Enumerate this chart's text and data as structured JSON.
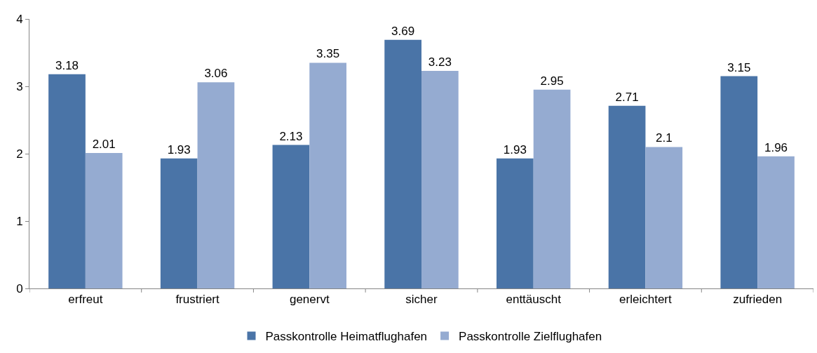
{
  "chart_data": {
    "type": "bar",
    "categories": [
      "erfreut",
      "frustriert",
      "genervt",
      "sicher",
      "enttäuscht",
      "erleichtert",
      "zufrieden"
    ],
    "series": [
      {
        "name": "Passkontrolle Heimatflughafen",
        "color": "#4a74a7",
        "values": [
          3.18,
          1.93,
          2.13,
          3.69,
          1.93,
          2.71,
          3.15
        ]
      },
      {
        "name": "Passkontrolle Zielflughafen",
        "color": "#95abd1",
        "values": [
          2.01,
          3.06,
          3.35,
          3.23,
          2.95,
          2.1,
          1.96
        ]
      }
    ],
    "ylim": [
      0,
      4
    ],
    "yticks": [
      0,
      1,
      2,
      3,
      4
    ],
    "grid": false,
    "legend": "bottom",
    "data_labels": true
  }
}
